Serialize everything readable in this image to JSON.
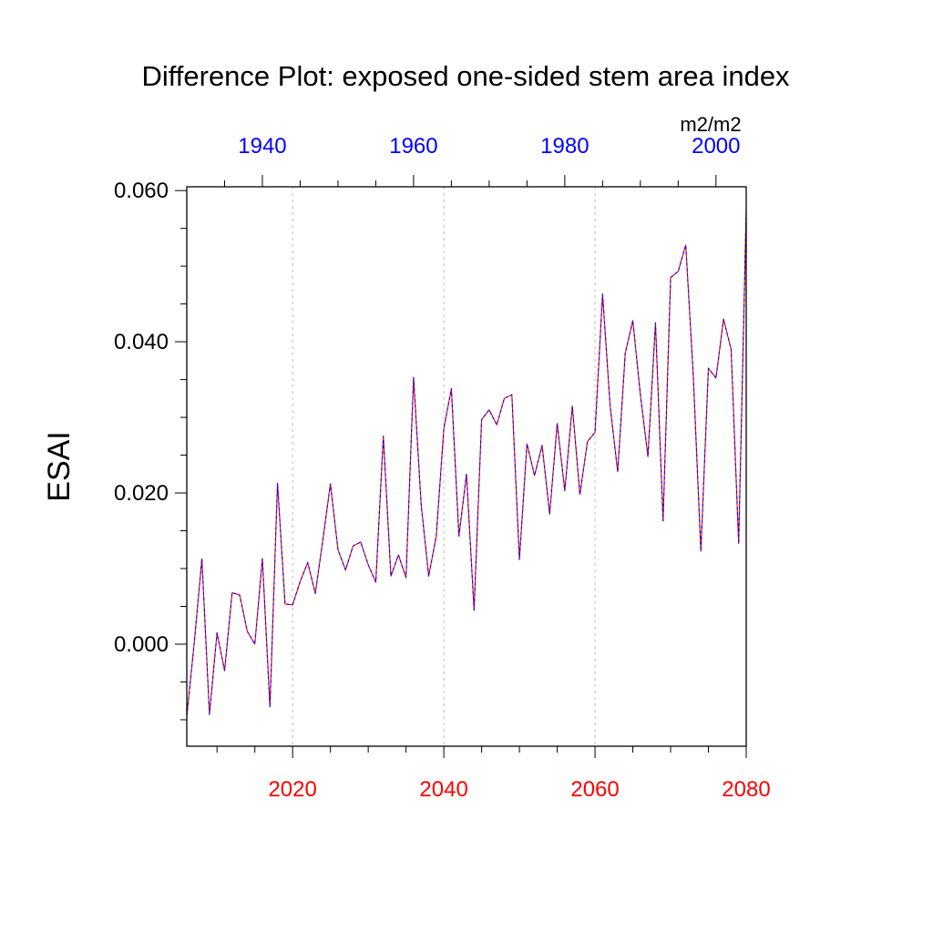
{
  "chart_data": {
    "type": "line",
    "title": "Difference Plot: exposed one-sided stem area index",
    "ylabel": "ESAI",
    "units": "m2/m2",
    "xlim_bottom": [
      2006,
      2080
    ],
    "xlim_top": [
      1930,
      2004
    ],
    "ylim": [
      -0.0135,
      0.0605
    ],
    "bottom_ticks": [
      2020,
      2040,
      2060,
      2080
    ],
    "top_ticks": [
      1940,
      1960,
      1980,
      2000
    ],
    "y_ticks": [
      0.0,
      0.02,
      0.04,
      0.06
    ],
    "y_tick_labels": [
      "0.000",
      "0.020",
      "0.040",
      "0.060"
    ],
    "grid": "dotted vertical at major bottom ticks",
    "colors": {
      "bottom_axis": "#ff0000",
      "top_axis": "#0000ff",
      "line_red": "#ff0000",
      "line_blue": "#0000ff",
      "frame": "#000000"
    },
    "series": [
      {
        "x": [
          2006,
          2007,
          2008,
          2009,
          2010,
          2011,
          2012,
          2013,
          2014,
          2015,
          2016,
          2017,
          2018,
          2019,
          2020,
          2021,
          2022,
          2023,
          2024,
          2025,
          2026,
          2027,
          2028,
          2029,
          2030,
          2031,
          2032,
          2033,
          2034,
          2035,
          2036,
          2037,
          2038,
          2039,
          2040,
          2041,
          2042,
          2043,
          2044,
          2045,
          2046,
          2047,
          2048,
          2049,
          2050,
          2051,
          2052,
          2053,
          2054,
          2055,
          2056,
          2057,
          2058,
          2059,
          2060,
          2061,
          2062,
          2063,
          2064,
          2065,
          2066,
          2067,
          2068,
          2069,
          2070,
          2071,
          2072,
          2073,
          2074,
          2075,
          2076,
          2077,
          2078,
          2079,
          2080
        ],
        "values": [
          -0.0095,
          0.0003,
          0.0113,
          -0.0093,
          0.0015,
          -0.0035,
          0.0068,
          0.0065,
          0.0017,
          0.0,
          0.0113,
          -0.0083,
          0.0213,
          0.0053,
          0.0052,
          0.0083,
          0.0108,
          0.0067,
          0.0138,
          0.0212,
          0.0125,
          0.0098,
          0.013,
          0.0135,
          0.0105,
          0.0082,
          0.0275,
          0.009,
          0.0118,
          0.0088,
          0.0353,
          0.0185,
          0.009,
          0.0143,
          0.0285,
          0.0338,
          0.0143,
          0.0225,
          0.0045,
          0.0297,
          0.031,
          0.029,
          0.0325,
          0.033,
          0.0112,
          0.0265,
          0.0223,
          0.0263,
          0.0172,
          0.0292,
          0.0203,
          0.0315,
          0.0198,
          0.0268,
          0.028,
          0.0463,
          0.0315,
          0.0228,
          0.0385,
          0.0428,
          0.033,
          0.0248,
          0.0425,
          0.0163,
          0.0485,
          0.0493,
          0.0528,
          0.0355,
          0.0123,
          0.0365,
          0.0352,
          0.043,
          0.039,
          0.0133,
          0.0575
        ]
      }
    ]
  }
}
